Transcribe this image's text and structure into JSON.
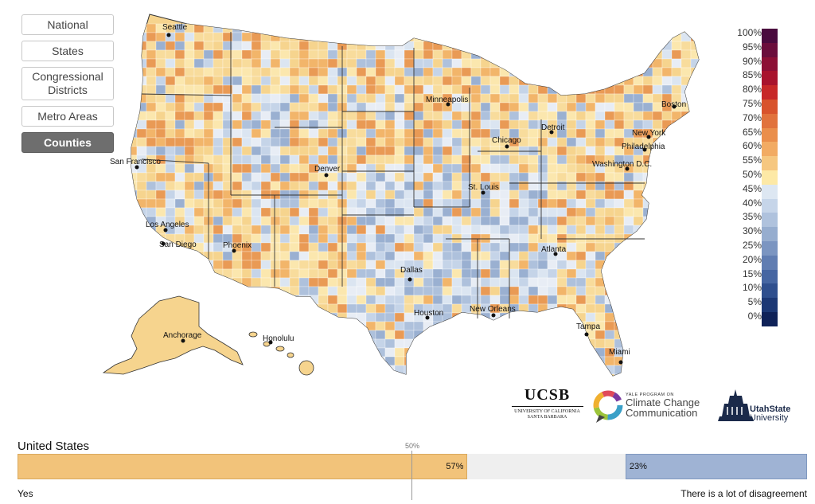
{
  "nav": {
    "buttons": [
      {
        "label": "National",
        "rows": 1,
        "active": false
      },
      {
        "label": "States",
        "rows": 1,
        "active": false
      },
      {
        "label": "Congressional Districts",
        "rows": 2,
        "active": false
      },
      {
        "label": "Metro Areas",
        "rows": 1,
        "active": false
      },
      {
        "label": "Counties",
        "rows": 1,
        "active": true
      }
    ]
  },
  "map": {
    "cities": [
      {
        "name": "Seattle"
      },
      {
        "name": "San Francisco"
      },
      {
        "name": "Los Angeles"
      },
      {
        "name": "San Diego"
      },
      {
        "name": "Phoenix"
      },
      {
        "name": "Denver"
      },
      {
        "name": "Minneapolis"
      },
      {
        "name": "Chicago"
      },
      {
        "name": "Detroit"
      },
      {
        "name": "St. Louis"
      },
      {
        "name": "Dallas"
      },
      {
        "name": "Houston"
      },
      {
        "name": "New Orleans"
      },
      {
        "name": "Atlanta"
      },
      {
        "name": "Tampa"
      },
      {
        "name": "Miami"
      },
      {
        "name": "Washington D.C."
      },
      {
        "name": "Philadelphia"
      },
      {
        "name": "New York"
      },
      {
        "name": "Boston"
      },
      {
        "name": "Anchorage"
      },
      {
        "name": "Honolulu"
      }
    ]
  },
  "legend": {
    "items": [
      {
        "label": "100%",
        "color": "#4a0a3e"
      },
      {
        "label": "95%",
        "color": "#6b0d3c"
      },
      {
        "label": "90%",
        "color": "#8c0f35"
      },
      {
        "label": "85%",
        "color": "#a8132d"
      },
      {
        "label": "80%",
        "color": "#c72828"
      },
      {
        "label": "75%",
        "color": "#d8532c"
      },
      {
        "label": "70%",
        "color": "#e1723c"
      },
      {
        "label": "65%",
        "color": "#ea8e4b"
      },
      {
        "label": "60%",
        "color": "#f2ab63"
      },
      {
        "label": "55%",
        "color": "#f6c780"
      },
      {
        "label": "50%",
        "color": "#fde9a6"
      },
      {
        "label": "45%",
        "color": "#dde7f2"
      },
      {
        "label": "40%",
        "color": "#c6d5e9"
      },
      {
        "label": "35%",
        "color": "#afc2dd"
      },
      {
        "label": "30%",
        "color": "#96adcf"
      },
      {
        "label": "25%",
        "color": "#7b95c1"
      },
      {
        "label": "20%",
        "color": "#607db2"
      },
      {
        "label": "15%",
        "color": "#4666a2"
      },
      {
        "label": "10%",
        "color": "#2f4f8e"
      },
      {
        "label": "5%",
        "color": "#1c3875"
      },
      {
        "label": "0%",
        "color": "#0f2258"
      }
    ]
  },
  "logos": {
    "ucsb": {
      "main": "UCSB",
      "sub1": "UNIVERSITY OF CALIFORNIA",
      "sub2": "SANTA BARBARA"
    },
    "yale": {
      "small": "YALE PROGRAM ON",
      "line1": "Climate Change",
      "line2": "Communication"
    },
    "usu": {
      "line1": "UtahState",
      "line2": "University"
    }
  },
  "summary": {
    "region": "United States",
    "midpoint_label": "50%",
    "yes_percent": 57,
    "yes_text": "57%",
    "no_percent": 23,
    "no_text": "23%",
    "yes_label": "Yes",
    "no_label": "There is a lot of disagreement",
    "yes_color": "#f2c37a",
    "no_color": "#9fb3d4"
  }
}
